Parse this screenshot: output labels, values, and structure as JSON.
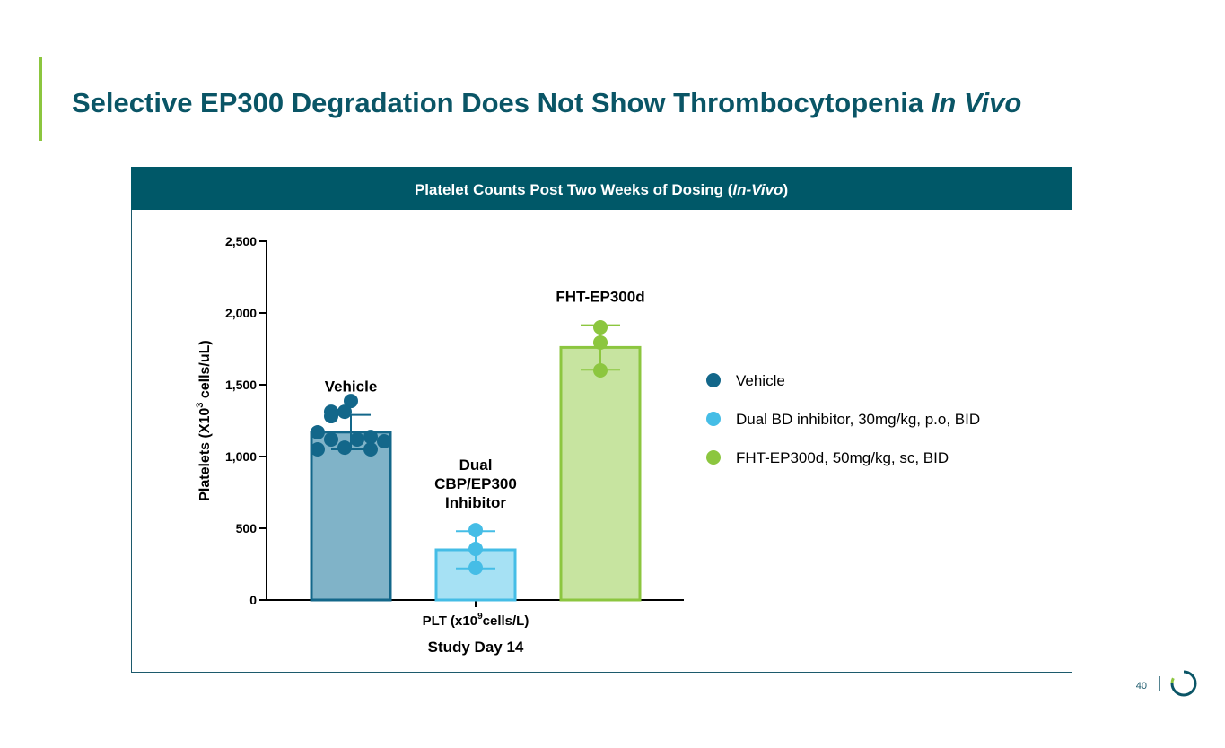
{
  "slide": {
    "title": "Selective EP300 Degradation Does Not Show Thrombocytopenia",
    "title_italic": "In Vivo",
    "page_number": "40"
  },
  "chart_data": {
    "type": "bar",
    "header_parts": [
      "Platelet Counts Post Two Weeks of Dosing (",
      "In-Vivo",
      ")"
    ],
    "ylabel_parts": [
      "Platelets  (X10",
      "3",
      " cells/uL)"
    ],
    "xlabel_parts": [
      "PLT (x10",
      "9",
      "cells/L)"
    ],
    "xlabel2": "Study Day 14",
    "ylim": [
      0,
      2500
    ],
    "yticks": [
      0,
      500,
      {
        "value": 1000,
        "label": "1,000"
      },
      {
        "value": 1500,
        "label": "1,500"
      },
      {
        "value": 2000,
        "label": "2,000"
      },
      {
        "value": 2500,
        "label": "2,500"
      }
    ],
    "series": [
      {
        "name": "Vehicle",
        "label_lines": [
          "Vehicle"
        ],
        "color": "#13678a",
        "fill": "#80b3c8",
        "values": [
          1170
        ],
        "error": [
          120
        ],
        "points": [
          1387,
          1312,
          1312,
          1281,
          1169,
          1119,
          1137,
          1119,
          1106,
          1050,
          1062,
          1050
        ]
      },
      {
        "name": "Dual BD inhibitor, 30mg/kg, p.o, BID",
        "label_lines": [
          "Dual",
          "CBP/EP300",
          "Inhibitor"
        ],
        "color": "#45bde6",
        "fill": "#a6e1f4",
        "values": [
          350
        ],
        "error": [
          130
        ],
        "points": [
          487,
          356,
          225
        ]
      },
      {
        "name": "FHT-EP300d, 50mg/kg, sc, BID",
        "label_lines": [
          "FHT-EP300d"
        ],
        "color": "#8cc63f",
        "fill": "#c7e4a0",
        "values": [
          1760
        ],
        "error": [
          155
        ],
        "points": [
          1900,
          1794,
          1600
        ]
      }
    ]
  }
}
